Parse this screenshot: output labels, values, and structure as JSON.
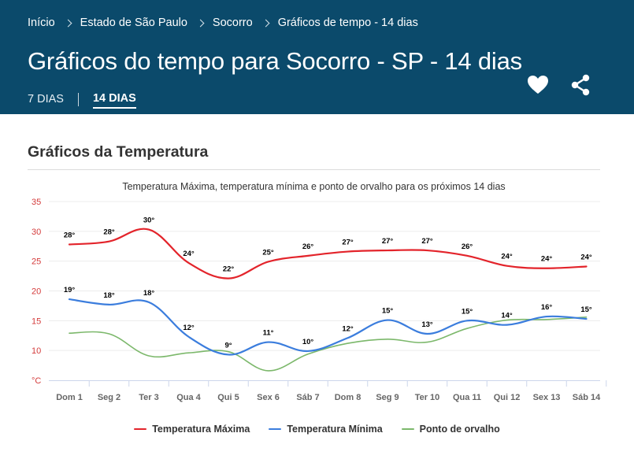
{
  "breadcrumb": [
    "Início",
    "Estado de São Paulo",
    "Socorro",
    "Gráficos de tempo - 14 dias"
  ],
  "page_title": "Gráficos do tempo para Socorro - SP - 14 dias",
  "tabs": [
    {
      "label": "7 DIAS",
      "active": false
    },
    {
      "label": "14 DIAS",
      "active": true
    }
  ],
  "icons": {
    "favorite": "heart-icon",
    "share": "share-icon"
  },
  "section_title": "Gráficos da Temperatura",
  "chart_data": {
    "type": "line",
    "title": "Temperatura Máxima, temperatura mínima e ponto de orvalho para os próximos 14 dias",
    "categories": [
      "Dom 1",
      "Seg 2",
      "Ter 3",
      "Qua 4",
      "Qui 5",
      "Sex 6",
      "Sáb 7",
      "Dom 8",
      "Seg 9",
      "Ter 10",
      "Qua 11",
      "Qui 12",
      "Sex 13",
      "Sáb 14"
    ],
    "ylabel": "°C",
    "yticks": [
      "35",
      "30",
      "25",
      "20",
      "15",
      "10"
    ],
    "ylim": [
      5,
      35
    ],
    "grid": true,
    "legend_position": "bottom",
    "series": [
      {
        "name": "Temperatura Máxima",
        "color": "#e3242b",
        "values": [
          28,
          28,
          30,
          24,
          22,
          25,
          26,
          27,
          27,
          27,
          26,
          24,
          24,
          24
        ],
        "labels": [
          "28°",
          "28°",
          "30°",
          "24°",
          "22°",
          "25°",
          "26°",
          "27°",
          "27°",
          "27°",
          "26°",
          "24°",
          "24°",
          "24°"
        ],
        "smooth": [
          27.8,
          28.3,
          30.3,
          24.7,
          22.1,
          24.9,
          25.9,
          26.6,
          26.8,
          26.8,
          25.9,
          24.2,
          23.8,
          24.1
        ]
      },
      {
        "name": "Temperatura Mínima",
        "color": "#3b7ddd",
        "values": [
          19,
          18,
          18,
          12,
          9,
          11,
          10,
          12,
          15,
          13,
          15,
          14,
          16,
          15
        ],
        "labels": [
          "19°",
          "18°",
          "18°",
          "12°",
          "9°",
          "11°",
          "10°",
          "12°",
          "15°",
          "13°",
          "15°",
          "14°",
          "16°",
          "15°"
        ],
        "smooth": [
          18.6,
          17.7,
          18.1,
          12.3,
          9.3,
          11.4,
          9.9,
          12.1,
          15.1,
          12.8,
          15.0,
          14.3,
          15.7,
          15.3
        ]
      },
      {
        "name": "Ponto de orvalho",
        "color": "#7cb86b",
        "values": [
          12.9,
          12.8,
          9.1,
          9.6,
          9.8,
          6.6,
          9.4,
          11.2,
          11.9,
          11.4,
          13.7,
          15.1,
          15.2,
          15.6
        ],
        "labels": [],
        "smooth": [
          12.9,
          12.8,
          9.1,
          9.6,
          9.8,
          6.6,
          9.4,
          11.2,
          11.9,
          11.4,
          13.7,
          15.1,
          15.2,
          15.6
        ]
      }
    ]
  }
}
